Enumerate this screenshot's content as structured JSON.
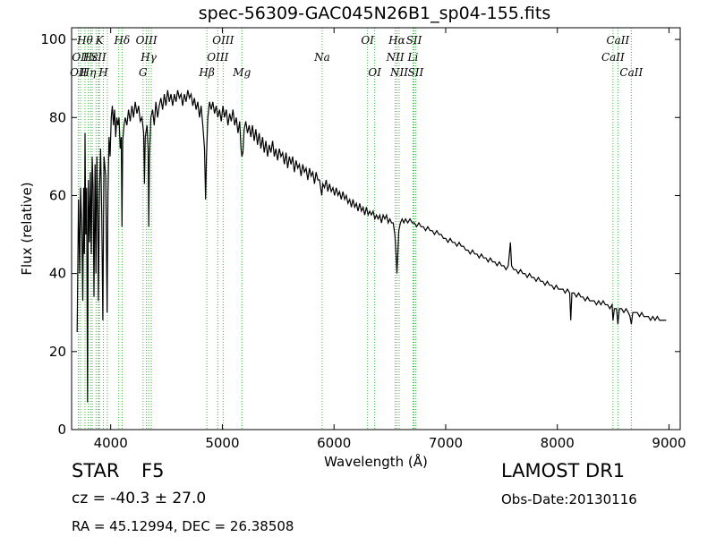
{
  "title": "spec-56309-GAC045N26B1_sp04-155.fits",
  "footer": {
    "object_class": "STAR",
    "subclass": "F5",
    "survey": "LAMOST DR1",
    "cz": "cz = -40.3 ± 27.0",
    "obs_date": "Obs-Date:20130116",
    "radec": "RA = 45.12994, DEC = 26.38508"
  },
  "chart_data": {
    "type": "line",
    "xlabel": "Wavelength (Å)",
    "ylabel": "Flux (relative)",
    "xlim": [
      3650,
      9100
    ],
    "ylim": [
      0,
      103
    ],
    "xticks": [
      4000,
      5000,
      6000,
      7000,
      8000,
      9000
    ],
    "yticks": [
      0,
      20,
      40,
      60,
      80,
      100
    ],
    "grid": false,
    "series_color": "#000000",
    "line_marker_color": "#33bb33",
    "spectrum": [
      [
        3700,
        25
      ],
      [
        3712,
        59
      ],
      [
        3722,
        40
      ],
      [
        3730,
        62
      ],
      [
        3742,
        50
      ],
      [
        3750,
        33
      ],
      [
        3758,
        62
      ],
      [
        3765,
        45
      ],
      [
        3770,
        76
      ],
      [
        3777,
        50
      ],
      [
        3785,
        62
      ],
      [
        3793,
        7
      ],
      [
        3800,
        64
      ],
      [
        3810,
        48
      ],
      [
        3818,
        66
      ],
      [
        3826,
        45
      ],
      [
        3834,
        70
      ],
      [
        3842,
        62
      ],
      [
        3850,
        34
      ],
      [
        3860,
        68
      ],
      [
        3868,
        40
      ],
      [
        3876,
        70
      ],
      [
        3884,
        55
      ],
      [
        3890,
        33
      ],
      [
        3900,
        62
      ],
      [
        3910,
        72
      ],
      [
        3920,
        55
      ],
      [
        3930,
        28
      ],
      [
        3940,
        70
      ],
      [
        3955,
        65
      ],
      [
        3968,
        30
      ],
      [
        3975,
        60
      ],
      [
        3985,
        75
      ],
      [
        3995,
        70
      ],
      [
        4005,
        80
      ],
      [
        4015,
        83
      ],
      [
        4025,
        78
      ],
      [
        4035,
        82
      ],
      [
        4045,
        75
      ],
      [
        4055,
        80
      ],
      [
        4065,
        78
      ],
      [
        4075,
        80
      ],
      [
        4085,
        72
      ],
      [
        4095,
        75
      ],
      [
        4101,
        52
      ],
      [
        4108,
        74
      ],
      [
        4120,
        78
      ],
      [
        4130,
        80
      ],
      [
        4145,
        78
      ],
      [
        4160,
        82
      ],
      [
        4175,
        79
      ],
      [
        4190,
        83
      ],
      [
        4205,
        80
      ],
      [
        4220,
        84
      ],
      [
        4235,
        81
      ],
      [
        4250,
        83
      ],
      [
        4265,
        79
      ],
      [
        4280,
        80
      ],
      [
        4295,
        76
      ],
      [
        4302,
        63
      ],
      [
        4310,
        75
      ],
      [
        4325,
        78
      ],
      [
        4335,
        72
      ],
      [
        4341,
        52
      ],
      [
        4347,
        70
      ],
      [
        4360,
        80
      ],
      [
        4375,
        82
      ],
      [
        4390,
        78
      ],
      [
        4405,
        84
      ],
      [
        4420,
        80
      ],
      [
        4435,
        83
      ],
      [
        4450,
        85
      ],
      [
        4465,
        82
      ],
      [
        4480,
        86
      ],
      [
        4495,
        83
      ],
      [
        4510,
        87
      ],
      [
        4525,
        84
      ],
      [
        4540,
        86
      ],
      [
        4555,
        83
      ],
      [
        4570,
        86
      ],
      [
        4585,
        84
      ],
      [
        4600,
        87
      ],
      [
        4615,
        85
      ],
      [
        4630,
        86
      ],
      [
        4645,
        83
      ],
      [
        4660,
        86
      ],
      [
        4675,
        84
      ],
      [
        4690,
        87
      ],
      [
        4705,
        85
      ],
      [
        4720,
        86
      ],
      [
        4735,
        83
      ],
      [
        4750,
        85
      ],
      [
        4765,
        82
      ],
      [
        4780,
        84
      ],
      [
        4795,
        80
      ],
      [
        4810,
        83
      ],
      [
        4825,
        78
      ],
      [
        4840,
        72
      ],
      [
        4850,
        59
      ],
      [
        4858,
        70
      ],
      [
        4870,
        80
      ],
      [
        4885,
        84
      ],
      [
        4900,
        82
      ],
      [
        4915,
        84
      ],
      [
        4930,
        81
      ],
      [
        4945,
        83
      ],
      [
        4960,
        80
      ],
      [
        4975,
        82
      ],
      [
        4990,
        79
      ],
      [
        5005,
        83
      ],
      [
        5020,
        80
      ],
      [
        5035,
        82
      ],
      [
        5050,
        78
      ],
      [
        5065,
        81
      ],
      [
        5080,
        79
      ],
      [
        5095,
        82
      ],
      [
        5110,
        78
      ],
      [
        5125,
        80
      ],
      [
        5140,
        76
      ],
      [
        5155,
        79
      ],
      [
        5167,
        72
      ],
      [
        5175,
        70
      ],
      [
        5184,
        71
      ],
      [
        5195,
        77
      ],
      [
        5210,
        79
      ],
      [
        5225,
        76
      ],
      [
        5240,
        78
      ],
      [
        5255,
        75
      ],
      [
        5270,
        78
      ],
      [
        5285,
        74
      ],
      [
        5300,
        77
      ],
      [
        5315,
        73
      ],
      [
        5330,
        76
      ],
      [
        5345,
        72
      ],
      [
        5360,
        75
      ],
      [
        5375,
        71
      ],
      [
        5390,
        74
      ],
      [
        5405,
        70
      ],
      [
        5420,
        73
      ],
      [
        5435,
        71
      ],
      [
        5450,
        74
      ],
      [
        5465,
        70
      ],
      [
        5480,
        72
      ],
      [
        5495,
        69
      ],
      [
        5510,
        72
      ],
      [
        5525,
        70
      ],
      [
        5540,
        71
      ],
      [
        5555,
        68
      ],
      [
        5570,
        71
      ],
      [
        5585,
        67
      ],
      [
        5600,
        70
      ],
      [
        5615,
        68
      ],
      [
        5630,
        70
      ],
      [
        5645,
        66
      ],
      [
        5660,
        69
      ],
      [
        5675,
        67
      ],
      [
        5690,
        68
      ],
      [
        5705,
        65
      ],
      [
        5720,
        68
      ],
      [
        5735,
        66
      ],
      [
        5750,
        67
      ],
      [
        5765,
        64
      ],
      [
        5780,
        67
      ],
      [
        5795,
        65
      ],
      [
        5810,
        66
      ],
      [
        5825,
        63
      ],
      [
        5840,
        66
      ],
      [
        5855,
        64
      ],
      [
        5870,
        64
      ],
      [
        5890,
        60
      ],
      [
        5900,
        63
      ],
      [
        5915,
        62
      ],
      [
        5930,
        64
      ],
      [
        5945,
        61
      ],
      [
        5960,
        63
      ],
      [
        5975,
        61
      ],
      [
        5990,
        62
      ],
      [
        6005,
        60
      ],
      [
        6020,
        62
      ],
      [
        6035,
        60
      ],
      [
        6050,
        61
      ],
      [
        6065,
        59
      ],
      [
        6080,
        61
      ],
      [
        6095,
        59
      ],
      [
        6110,
        60
      ],
      [
        6125,
        58
      ],
      [
        6140,
        59
      ],
      [
        6155,
        57
      ],
      [
        6170,
        59
      ],
      [
        6185,
        57
      ],
      [
        6200,
        58
      ],
      [
        6215,
        56
      ],
      [
        6230,
        58
      ],
      [
        6245,
        56
      ],
      [
        6260,
        57
      ],
      [
        6275,
        55
      ],
      [
        6290,
        57
      ],
      [
        6305,
        55
      ],
      [
        6320,
        56
      ],
      [
        6335,
        55
      ],
      [
        6350,
        56
      ],
      [
        6365,
        54
      ],
      [
        6380,
        55
      ],
      [
        6395,
        54
      ],
      [
        6410,
        55
      ],
      [
        6425,
        53
      ],
      [
        6440,
        55
      ],
      [
        6455,
        54
      ],
      [
        6470,
        55
      ],
      [
        6485,
        53
      ],
      [
        6500,
        54
      ],
      [
        6515,
        53
      ],
      [
        6530,
        53
      ],
      [
        6545,
        50
      ],
      [
        6555,
        45
      ],
      [
        6563,
        40
      ],
      [
        6571,
        45
      ],
      [
        6580,
        51
      ],
      [
        6595,
        53
      ],
      [
        6610,
        54
      ],
      [
        6625,
        53
      ],
      [
        6640,
        54
      ],
      [
        6660,
        53
      ],
      [
        6680,
        54
      ],
      [
        6700,
        53
      ],
      [
        6720,
        53
      ],
      [
        6740,
        52
      ],
      [
        6760,
        53
      ],
      [
        6780,
        52
      ],
      [
        6800,
        52
      ],
      [
        6820,
        51
      ],
      [
        6840,
        52
      ],
      [
        6860,
        51
      ],
      [
        6880,
        51
      ],
      [
        6900,
        50
      ],
      [
        6920,
        51
      ],
      [
        6940,
        50
      ],
      [
        6960,
        50
      ],
      [
        6980,
        49
      ],
      [
        7000,
        49
      ],
      [
        7020,
        48
      ],
      [
        7040,
        49
      ],
      [
        7060,
        48
      ],
      [
        7080,
        48
      ],
      [
        7100,
        47
      ],
      [
        7120,
        48
      ],
      [
        7140,
        47
      ],
      [
        7160,
        47
      ],
      [
        7180,
        46
      ],
      [
        7200,
        46
      ],
      [
        7220,
        45
      ],
      [
        7240,
        46
      ],
      [
        7260,
        45
      ],
      [
        7280,
        45
      ],
      [
        7300,
        44
      ],
      [
        7320,
        45
      ],
      [
        7340,
        44
      ],
      [
        7360,
        44
      ],
      [
        7380,
        43
      ],
      [
        7400,
        44
      ],
      [
        7420,
        43
      ],
      [
        7440,
        43
      ],
      [
        7460,
        42
      ],
      [
        7480,
        43
      ],
      [
        7500,
        42
      ],
      [
        7520,
        42
      ],
      [
        7540,
        41
      ],
      [
        7560,
        42
      ],
      [
        7580,
        48
      ],
      [
        7590,
        42
      ],
      [
        7610,
        41
      ],
      [
        7630,
        41
      ],
      [
        7650,
        40
      ],
      [
        7670,
        41
      ],
      [
        7690,
        40
      ],
      [
        7710,
        40
      ],
      [
        7730,
        39
      ],
      [
        7750,
        40
      ],
      [
        7770,
        39
      ],
      [
        7790,
        39
      ],
      [
        7810,
        38
      ],
      [
        7830,
        39
      ],
      [
        7850,
        38
      ],
      [
        7870,
        38
      ],
      [
        7890,
        37
      ],
      [
        7910,
        38
      ],
      [
        7930,
        37
      ],
      [
        7950,
        37
      ],
      [
        7970,
        36
      ],
      [
        7990,
        37
      ],
      [
        8010,
        36
      ],
      [
        8030,
        36
      ],
      [
        8050,
        36
      ],
      [
        8070,
        35
      ],
      [
        8090,
        36
      ],
      [
        8110,
        35
      ],
      [
        8120,
        28
      ],
      [
        8130,
        35
      ],
      [
        8150,
        35
      ],
      [
        8170,
        34
      ],
      [
        8190,
        35
      ],
      [
        8210,
        34
      ],
      [
        8230,
        34
      ],
      [
        8250,
        33
      ],
      [
        8270,
        34
      ],
      [
        8290,
        33
      ],
      [
        8310,
        33
      ],
      [
        8330,
        33
      ],
      [
        8350,
        32
      ],
      [
        8370,
        33
      ],
      [
        8390,
        32
      ],
      [
        8410,
        33
      ],
      [
        8430,
        32
      ],
      [
        8450,
        32
      ],
      [
        8470,
        31
      ],
      [
        8490,
        32
      ],
      [
        8498,
        28
      ],
      [
        8510,
        31
      ],
      [
        8530,
        31
      ],
      [
        8542,
        27
      ],
      [
        8555,
        31
      ],
      [
        8575,
        31
      ],
      [
        8595,
        30
      ],
      [
        8615,
        31
      ],
      [
        8635,
        30
      ],
      [
        8650,
        29
      ],
      [
        8662,
        27
      ],
      [
        8675,
        30
      ],
      [
        8695,
        30
      ],
      [
        8715,
        30
      ],
      [
        8735,
        29
      ],
      [
        8755,
        30
      ],
      [
        8775,
        29
      ],
      [
        8795,
        29
      ],
      [
        8815,
        29
      ],
      [
        8835,
        28
      ],
      [
        8855,
        29
      ],
      [
        8875,
        28
      ],
      [
        8895,
        29
      ],
      [
        8915,
        28
      ],
      [
        8935,
        28
      ],
      [
        8955,
        28
      ],
      [
        8975,
        28
      ]
    ],
    "line_markers": [
      {
        "x": 3712,
        "label": "OII",
        "row": 2
      },
      {
        "x": 3712,
        "label": "",
        "row": 0
      },
      {
        "x": 3730,
        "label": "OII",
        "row": 1
      },
      {
        "x": 3770,
        "label": "Hθ",
        "row": 0
      },
      {
        "x": 3798,
        "label": "Hη",
        "row": 2
      },
      {
        "x": 3820,
        "label": "Hε",
        "row": 1
      },
      {
        "x": 3835,
        "label": "",
        "row": 0
      },
      {
        "x": 3869,
        "label": "",
        "row": 0
      },
      {
        "x": 3889,
        "label": "",
        "row": 0
      },
      {
        "x": 3900,
        "label": "K",
        "row": 0
      },
      {
        "x": 3934,
        "label": "H",
        "row": 2
      },
      {
        "x": 3970,
        "label": "",
        "row": 0
      },
      {
        "x": 3890,
        "label": "SII",
        "row": 1
      },
      {
        "x": 4072,
        "label": "",
        "row": 0
      },
      {
        "x": 4102,
        "label": "Hδ",
        "row": 0
      },
      {
        "x": 4290,
        "label": "G",
        "row": 2
      },
      {
        "x": 4320,
        "label": "OIII",
        "row": 0
      },
      {
        "x": 4340,
        "label": "Hγ",
        "row": 1
      },
      {
        "x": 4364,
        "label": "",
        "row": 0
      },
      {
        "x": 4861,
        "label": "Hβ",
        "row": 2
      },
      {
        "x": 4959,
        "label": "OIII",
        "row": 1
      },
      {
        "x": 5007,
        "label": "OIII",
        "row": 0
      },
      {
        "x": 5175,
        "label": "Mg",
        "row": 2
      },
      {
        "x": 5894,
        "label": "Na",
        "row": 1
      },
      {
        "x": 6300,
        "label": "OI",
        "row": 0
      },
      {
        "x": 6364,
        "label": "OI",
        "row": 2
      },
      {
        "x": 6548,
        "label": "NII",
        "row": 1
      },
      {
        "x": 6563,
        "label": "Hα",
        "row": 0
      },
      {
        "x": 6583,
        "label": "NII",
        "row": 2
      },
      {
        "x": 6707,
        "label": "Li",
        "row": 1
      },
      {
        "x": 6716,
        "label": "SII",
        "row": 0
      },
      {
        "x": 6731,
        "label": "SII",
        "row": 2
      },
      {
        "x": 8498,
        "label": "CaII",
        "row": 1
      },
      {
        "x": 8542,
        "label": "CaII",
        "row": 0
      },
      {
        "x": 8662,
        "label": "CaII",
        "row": 2
      }
    ]
  }
}
